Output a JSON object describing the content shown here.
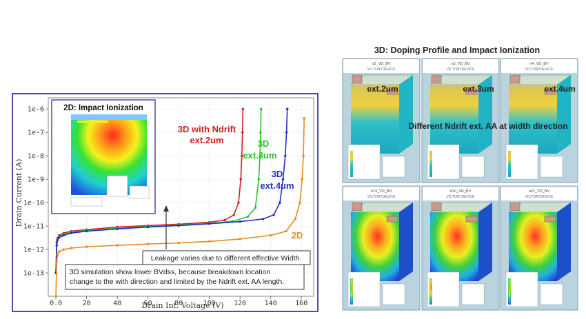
{
  "colors": {
    "ndrift_2um": "#d21f1f",
    "ndrift_3um": "#27c427",
    "ndrift_4um": "#1f2fc8",
    "planar_2d": "#e88a1e",
    "frame": "#4b4bb0",
    "panel_bg": "#9ebfd0"
  },
  "chart_data": {
    "type": "line",
    "xlabel": "Drain Int. Voltage (V)",
    "ylabel": "Drain Current (A)",
    "xlim": [
      -5,
      168
    ],
    "ylim": [
      1e-14,
      3e-06
    ],
    "yscale": "log",
    "grid": true,
    "x_ticks": [
      "0.0",
      "20",
      "40",
      "60",
      "80",
      "100",
      "120",
      "140",
      "160"
    ],
    "y_ticks": [
      "1e-13",
      "1e-12",
      "1e-11",
      "1e-10",
      "1e-9",
      "1e-8",
      "1e-7",
      "1e-6"
    ],
    "series": [
      {
        "name": "3D with Ndrift ext.2um",
        "color_key": "ndrift_2um",
        "x": [
          0,
          0.5,
          1,
          2,
          5,
          10,
          20,
          40,
          60,
          80,
          100,
          110,
          116,
          119,
          120.5,
          121.2,
          121.6,
          121.9
        ],
        "y": [
          1e-13,
          2e-12,
          3e-12,
          4e-12,
          5e-12,
          6e-12,
          7e-12,
          9e-12,
          1.05e-11,
          1.2e-11,
          1.45e-11,
          1.8e-11,
          3e-11,
          1e-10,
          1e-09,
          1e-08,
          1e-07,
          1e-06
        ]
      },
      {
        "name": "3D ext.3um",
        "color_key": "ndrift_3um",
        "x": [
          0,
          0.5,
          1,
          2,
          5,
          10,
          20,
          40,
          60,
          80,
          100,
          115,
          125,
          130,
          132.2,
          133,
          133.4,
          133.7
        ],
        "y": [
          1e-13,
          1.5e-12,
          2.5e-12,
          3.5e-12,
          4.5e-12,
          5.5e-12,
          6.5e-12,
          8e-12,
          9.5e-12,
          1.1e-11,
          1.3e-11,
          1.6e-11,
          2.5e-11,
          6e-11,
          1e-09,
          1e-08,
          1e-07,
          1e-06
        ]
      },
      {
        "name": "3D ext.4um",
        "color_key": "ndrift_4um",
        "x": [
          0,
          0.5,
          1,
          2,
          5,
          10,
          20,
          40,
          60,
          80,
          100,
          120,
          135,
          142,
          146,
          148,
          149.5,
          150.3,
          150.8
        ],
        "y": [
          1e-13,
          1.5e-12,
          2.5e-12,
          3.2e-12,
          4e-12,
          5e-12,
          6e-12,
          7.5e-12,
          9e-12,
          1.05e-11,
          1.25e-11,
          1.55e-11,
          2e-11,
          3e-11,
          1e-10,
          1e-09,
          1e-08,
          1e-07,
          1e-06
        ]
      },
      {
        "name": "2D",
        "color_key": "planar_2d",
        "x": [
          0,
          0.5,
          1,
          2,
          5,
          10,
          20,
          40,
          60,
          80,
          100,
          120,
          140,
          150,
          156,
          159,
          160.5,
          161.3,
          161.8
        ],
        "y": [
          1e-14,
          3e-13,
          6e-13,
          8e-13,
          1e-12,
          1.15e-12,
          1.3e-12,
          1.5e-12,
          1.7e-12,
          1.9e-12,
          2.2e-12,
          2.8e-12,
          4e-12,
          6e-12,
          2e-11,
          1e-10,
          1e-09,
          1e-08,
          4e-07
        ]
      }
    ],
    "annotations": {
      "red": "3D with Ndrift\next.2um",
      "green": "3D\next.3um",
      "blue": "3D\next.4um",
      "orange": "2D",
      "leakage": "Leakage varies due to different effective Width.",
      "note": "3D simulation show lower BVdss, because breakdown location\nchange to the with direction and limited by the Ndrift ext. AA length."
    }
  },
  "inset": {
    "title": "2D: Impact Ionization"
  },
  "right_panel": {
    "title": "3D: Doping Profile and Impact Ionization",
    "overlay_labels": [
      "ext.2um",
      "ext.3um",
      "ext.4um"
    ],
    "overlay_caption": "Different Ndrift ext. AA at width direction",
    "top_row_headers": [
      "n2_VD_BV",
      "n3_VD_BV",
      "n4_VD_BV"
    ],
    "bottom_row_headers": [
      "n74_VD_BV",
      "n20_VD_BV",
      "n21_VD_BV"
    ],
    "subheader": "VICTORYDEVICE"
  }
}
